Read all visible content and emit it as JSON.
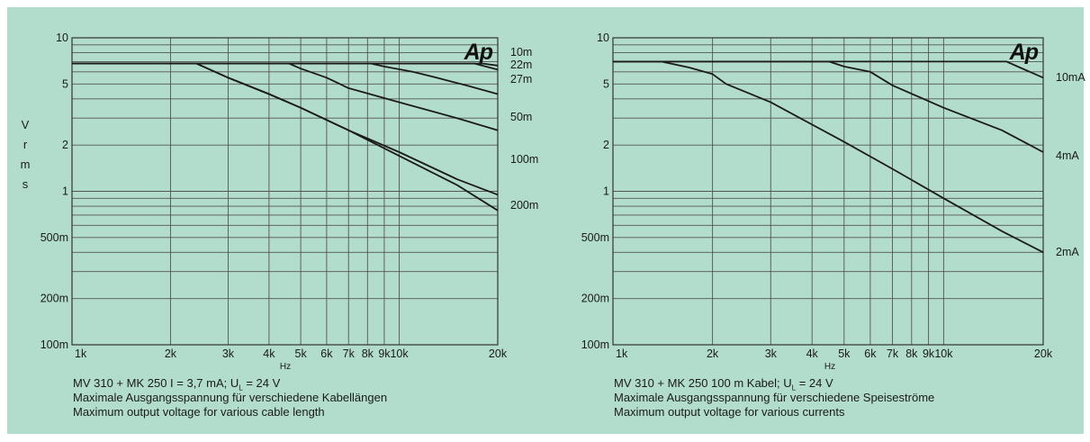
{
  "chart_data": [
    {
      "type": "line",
      "logo": "Ap",
      "xlabel": "Hz",
      "ylabel": "Vrms",
      "x_scale": "log",
      "y_scale": "log",
      "xlim": [
        1000,
        20000
      ],
      "ylim": [
        0.1,
        10
      ],
      "x_ticks": [
        1000,
        2000,
        3000,
        4000,
        5000,
        6000,
        7000,
        8000,
        9000,
        10000,
        20000
      ],
      "x_tick_labels": [
        "1k",
        "2k",
        "3k",
        "4k",
        "5k",
        "6k",
        "7k",
        "8k",
        "9k",
        "10k",
        "20k"
      ],
      "y_ticks": [
        0.1,
        0.2,
        0.5,
        1,
        2,
        5,
        10
      ],
      "y_tick_labels": [
        "100m",
        "200m",
        "500m",
        "1",
        "2",
        "5",
        "10"
      ],
      "grid": true,
      "series": [
        {
          "name": "10m",
          "x": [
            1000,
            18000,
            20000
          ],
          "y": [
            6.8,
            6.8,
            6.6
          ]
        },
        {
          "name": "22m",
          "x": [
            1000,
            17000,
            20000
          ],
          "y": [
            6.8,
            6.8,
            6.2
          ]
        },
        {
          "name": "27m",
          "x": [
            1000,
            8200,
            9000,
            11000,
            13000,
            16000,
            20000
          ],
          "y": [
            6.8,
            6.8,
            6.5,
            6.0,
            5.5,
            4.9,
            4.3
          ]
        },
        {
          "name": "50m",
          "x": [
            1000,
            4600,
            5000,
            6000,
            7000,
            10000,
            15000,
            20000
          ],
          "y": [
            6.8,
            6.8,
            6.3,
            5.5,
            4.7,
            3.8,
            3.0,
            2.5
          ]
        },
        {
          "name": "100m",
          "x": [
            1000,
            2400,
            3000,
            4000,
            5000,
            7000,
            10000,
            15000,
            20000
          ],
          "y": [
            6.8,
            6.8,
            5.5,
            4.3,
            3.5,
            2.5,
            1.8,
            1.2,
            0.95
          ]
        },
        {
          "name": "200m",
          "x": [
            1000,
            2400,
            3000,
            4000,
            5000,
            7000,
            10000,
            15000,
            20000
          ],
          "y": [
            6.8,
            6.8,
            5.5,
            4.3,
            3.5,
            2.5,
            1.7,
            1.1,
            0.75
          ]
        }
      ],
      "series_labels": [
        "10m",
        "22m",
        "27m",
        "50m",
        "100m",
        "200m"
      ],
      "caption_main": "MV 310 + MK 250    I = 3,7 mA; U",
      "caption_sub": "L",
      "caption_end": " = 24 V",
      "caption_de": "Maximale Ausgangsspannung für verschiedene Kabellängen",
      "caption_en": "Maximum output voltage for various cable length"
    },
    {
      "type": "line",
      "logo": "Ap",
      "xlabel": "Hz",
      "ylabel": "",
      "x_scale": "log",
      "y_scale": "log",
      "xlim": [
        1000,
        20000
      ],
      "ylim": [
        0.1,
        10
      ],
      "x_ticks": [
        1000,
        2000,
        3000,
        4000,
        5000,
        6000,
        7000,
        8000,
        9000,
        10000,
        20000
      ],
      "x_tick_labels": [
        "1k",
        "2k",
        "3k",
        "4k",
        "5k",
        "6k",
        "7k",
        "8k",
        "9k",
        "10k",
        "20k"
      ],
      "y_ticks": [
        0.1,
        0.2,
        0.5,
        1,
        2,
        5,
        10
      ],
      "y_tick_labels": [
        "100m",
        "200m",
        "500m",
        "1",
        "2",
        "5",
        "10"
      ],
      "grid": true,
      "series": [
        {
          "name": "10mA",
          "x": [
            1000,
            15500,
            17000,
            20000
          ],
          "y": [
            7.0,
            7.0,
            6.4,
            5.5
          ]
        },
        {
          "name": "4mA",
          "x": [
            1000,
            4500,
            5000,
            6000,
            7000,
            10000,
            15000,
            20000
          ],
          "y": [
            7.0,
            7.0,
            6.5,
            6.0,
            4.9,
            3.5,
            2.5,
            1.8
          ]
        },
        {
          "name": "2mA",
          "x": [
            1000,
            1400,
            1700,
            2000,
            2200,
            3000,
            5000,
            7000,
            10000,
            15000,
            20000
          ],
          "y": [
            7.0,
            7.0,
            6.4,
            5.8,
            5.0,
            3.8,
            2.1,
            1.4,
            0.9,
            0.55,
            0.4
          ]
        }
      ],
      "series_labels": [
        "10mA",
        "4mA",
        "2mA"
      ],
      "caption_main": "MV 310 + MK 250    100 m Kabel; U",
      "caption_sub": "L",
      "caption_end": " = 24 V",
      "caption_de": "Maximale Ausgangsspannung für verschiedene Speiseströme",
      "caption_en": "Maximum output voltage for various currents"
    }
  ]
}
